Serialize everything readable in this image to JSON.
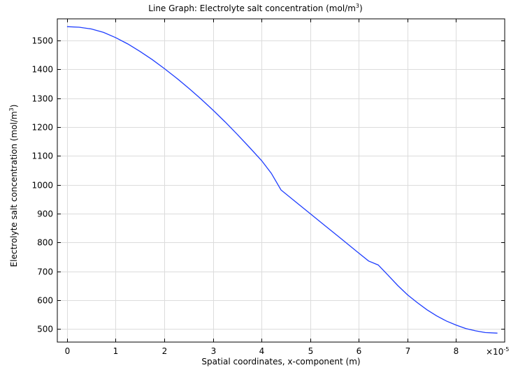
{
  "chart_data": {
    "type": "line",
    "title": {
      "prefix": "Line Graph: Electrolyte salt concentration (mol/m",
      "sup": "3",
      "suffix": ")"
    },
    "xlabel": "Spatial coordinates, x-component (m)",
    "ylabel": {
      "prefix": "Electrolyte salt concentration (mol/m",
      "sup": "3",
      "suffix": ")"
    },
    "x_multiplier": {
      "prefix": "×10",
      "sup": "-5"
    },
    "xlim": [
      -0.2,
      9.0
    ],
    "ylim": [
      455,
      1575
    ],
    "x_ticks": [
      0,
      1,
      2,
      3,
      4,
      5,
      6,
      7,
      8
    ],
    "y_ticks": [
      500,
      600,
      700,
      800,
      900,
      1000,
      1100,
      1200,
      1300,
      1400,
      1500
    ],
    "grid": true,
    "line_color": "#1f3eff",
    "series": [
      {
        "x": [
          0,
          0.25,
          0.5,
          0.75,
          1.0,
          1.25,
          1.5,
          1.75,
          2.0,
          2.25,
          2.5,
          2.75,
          3.0,
          3.25,
          3.5,
          3.75,
          4.0,
          4.2,
          4.4,
          4.7,
          5.0,
          5.3,
          5.6,
          5.9,
          6.2,
          6.4,
          6.6,
          6.8,
          7.0,
          7.2,
          7.4,
          7.6,
          7.8,
          8.0,
          8.2,
          8.4,
          8.6,
          8.85
        ],
        "y": [
          1548,
          1546,
          1540,
          1528,
          1510,
          1488,
          1462,
          1434,
          1403,
          1370,
          1335,
          1298,
          1259,
          1218,
          1175,
          1130,
          1084,
          1040,
          982,
          941,
          900,
          859,
          818,
          777,
          736,
          722,
          687,
          651,
          619,
          592,
          567,
          546,
          528,
          514,
          502,
          494,
          488,
          486
        ]
      }
    ]
  }
}
